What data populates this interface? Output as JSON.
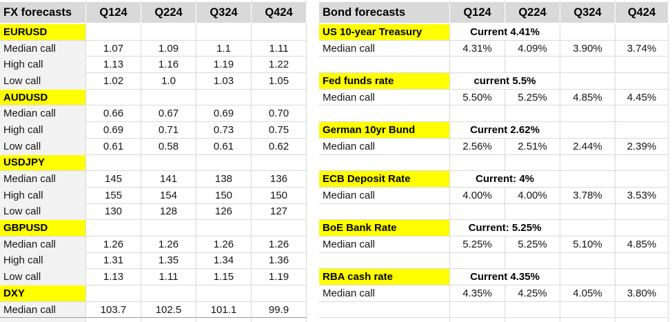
{
  "colors": {
    "header_bg": "#d9d9d9",
    "section_bg": "#ffff00",
    "label_col_bg": "#f2f2f2",
    "gridline": "#d9d9d9",
    "dark_gridline": "#9b9b9b"
  },
  "fx_table": {
    "title": "FX forecasts",
    "quarters": [
      "Q124",
      "Q224",
      "Q324",
      "Q424"
    ],
    "sections": [
      {
        "label": "EURUSD",
        "rows": [
          {
            "label": "Median call",
            "values": [
              "1.07",
              "1.09",
              "1.1",
              "1.11"
            ]
          },
          {
            "label": "High call",
            "values": [
              "1.13",
              "1.16",
              "1.19",
              "1.22"
            ]
          },
          {
            "label": "Low call",
            "values": [
              "1.02",
              "1.0",
              "1.03",
              "1.05"
            ]
          }
        ]
      },
      {
        "label": "AUDUSD",
        "rows": [
          {
            "label": "Median call",
            "values": [
              "0.66",
              "0.67",
              "0.69",
              "0.70"
            ]
          },
          {
            "label": "High call",
            "values": [
              "0.69",
              "0.71",
              "0.73",
              "0.75"
            ]
          },
          {
            "label": "Low call",
            "values": [
              "0.61",
              "0.58",
              "0.61",
              "0.62"
            ]
          }
        ]
      },
      {
        "label": "USDJPY",
        "rows": [
          {
            "label": "Median call",
            "values": [
              "145",
              "141",
              "138",
              "136"
            ]
          },
          {
            "label": "High call",
            "values": [
              "155",
              "154",
              "150",
              "150"
            ]
          },
          {
            "label": "Low call",
            "values": [
              "130",
              "128",
              "126",
              "127"
            ]
          }
        ]
      },
      {
        "label": "GBPUSD",
        "rows": [
          {
            "label": "Median call",
            "values": [
              "1.26",
              "1.26",
              "1.26",
              "1.26"
            ]
          },
          {
            "label": "High call",
            "values": [
              "1.31",
              "1.35",
              "1.34",
              "1.36"
            ]
          },
          {
            "label": "Low call",
            "values": [
              "1.13",
              "1.11",
              "1.15",
              "1.19"
            ]
          }
        ]
      },
      {
        "label": "DXY",
        "rows": [
          {
            "label": "Median call",
            "values": [
              "103.7",
              "102.5",
              "101.1",
              "99.9"
            ]
          }
        ]
      }
    ]
  },
  "bond_table": {
    "title": "Bond forecasts",
    "quarters": [
      "Q124",
      "Q224",
      "Q324",
      "Q424"
    ],
    "sections": [
      {
        "label": "US 10-year Treasury",
        "current": "Current 4.41%",
        "rows": [
          {
            "label": "Median call",
            "values": [
              "4.31%",
              "4.09%",
              "3.90%",
              "3.74%"
            ]
          }
        ]
      },
      {
        "label": "Fed funds rate",
        "current": "current 5.5%",
        "rows": [
          {
            "label": "Median call",
            "values": [
              "5.50%",
              "5.25%",
              "4.85%",
              "4.45%"
            ]
          }
        ]
      },
      {
        "label": "German 10yr Bund",
        "current": "Current 2.62%",
        "rows": [
          {
            "label": "Median call",
            "values": [
              "2.56%",
              "2.51%",
              "2.44%",
              "2.39%"
            ]
          }
        ]
      },
      {
        "label": "ECB Deposit Rate",
        "current": "Current: 4%",
        "rows": [
          {
            "label": "Median call",
            "values": [
              "4.00%",
              "4.00%",
              "3.78%",
              "3.53%"
            ]
          }
        ]
      },
      {
        "label": "BoE Bank Rate",
        "current": "Current: 5.25%",
        "rows": [
          {
            "label": "Median call",
            "values": [
              "5.25%",
              "5.25%",
              "5.10%",
              "4.85%"
            ]
          }
        ]
      },
      {
        "label": "RBA cash rate",
        "current": "Current 4.35%",
        "rows": [
          {
            "label": "Median call",
            "values": [
              "4.35%",
              "4.25%",
              "4.05%",
              "3.80%"
            ]
          }
        ]
      }
    ]
  }
}
